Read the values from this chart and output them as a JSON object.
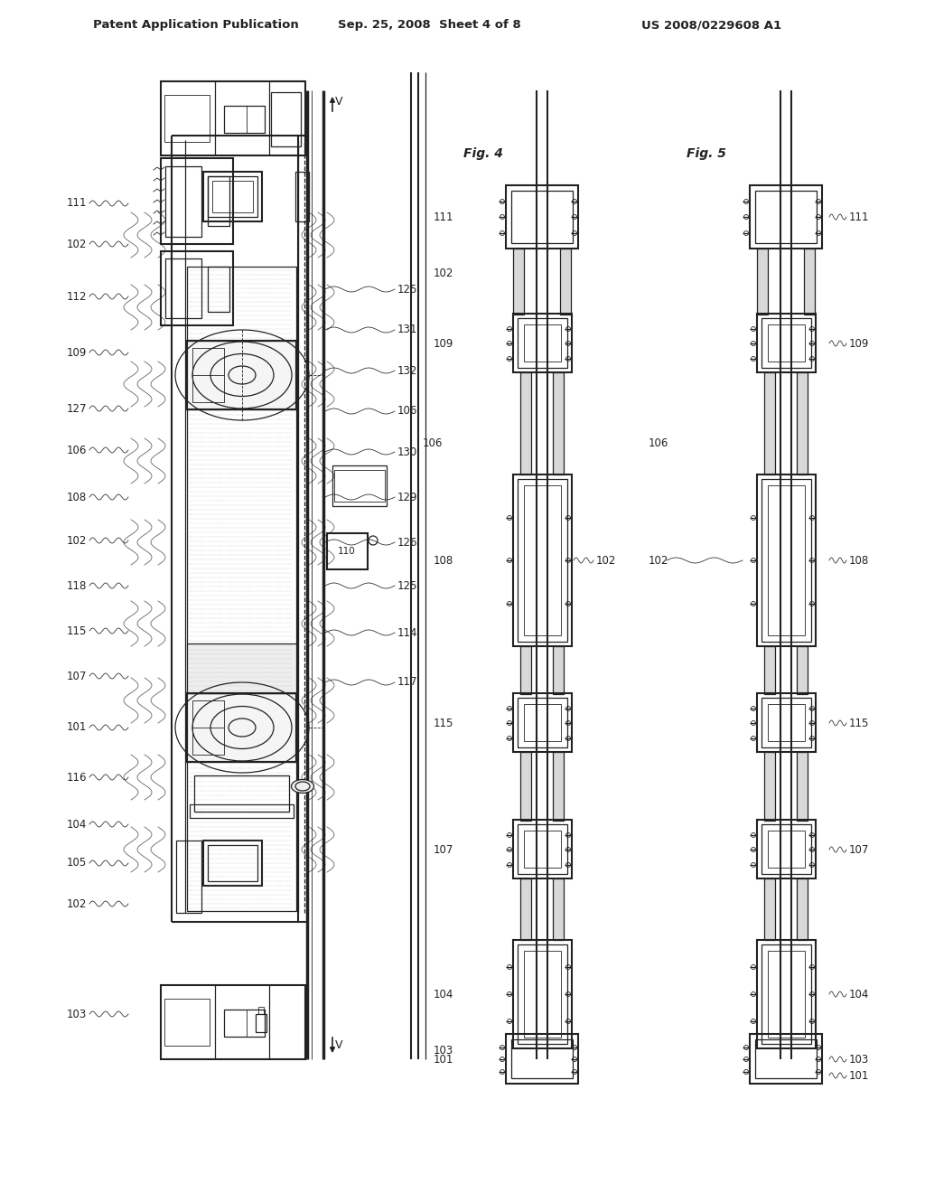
{
  "bg_color": "#ffffff",
  "header_left": "Patent Application Publication",
  "header_center": "Sep. 25, 2008  Sheet 4 of 8",
  "header_right": "US 2008/0229608 A1",
  "line_color": "#222222",
  "label_color": "#222222",
  "fig4_label": "Fig. 4",
  "fig5_label": "Fig. 5"
}
